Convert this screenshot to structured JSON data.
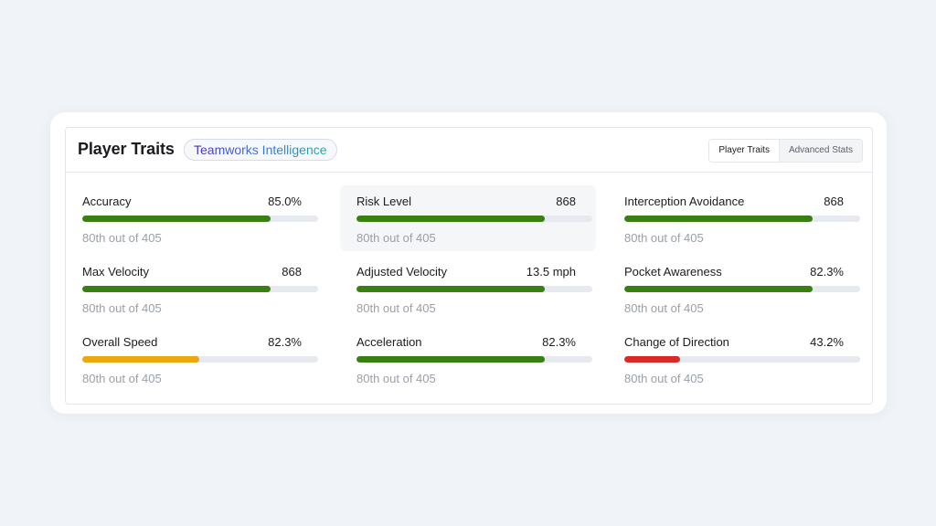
{
  "header": {
    "title": "Player Traits",
    "badge": "Teamworks Intelligence",
    "tabs": [
      {
        "label": "Player Traits",
        "active": true
      },
      {
        "label": "Advanced Stats",
        "active": false
      }
    ]
  },
  "colors": {
    "green": "#3a7f12",
    "yellow": "#e8a80e",
    "red": "#d92a2a",
    "track": "#e6e9ee"
  },
  "traits": [
    {
      "label": "Accuracy",
      "value": "85.0%",
      "rank": "80th out of 405",
      "fill": 0.8,
      "color": "green",
      "highlight": false
    },
    {
      "label": "Risk Level",
      "value": "868",
      "rank": "80th out of 405",
      "fill": 0.8,
      "color": "green",
      "highlight": true
    },
    {
      "label": "Interception Avoidance",
      "value": "868",
      "rank": "80th out of 405",
      "fill": 0.8,
      "color": "green",
      "highlight": false
    },
    {
      "label": "Max Velocity",
      "value": "868",
      "rank": "80th out of 405",
      "fill": 0.8,
      "color": "green",
      "highlight": false
    },
    {
      "label": "Adjusted Velocity",
      "value": "13.5 mph",
      "rank": "80th out of 405",
      "fill": 0.8,
      "color": "green",
      "highlight": false
    },
    {
      "label": "Pocket Awareness",
      "value": "82.3%",
      "rank": "80th out of 405",
      "fill": 0.8,
      "color": "green",
      "highlight": false
    },
    {
      "label": "Overall Speed",
      "value": "82.3%",
      "rank": "80th out of 405",
      "fill": 0.495,
      "color": "yellow",
      "highlight": false
    },
    {
      "label": "Acceleration",
      "value": "82.3%",
      "rank": "80th out of 405",
      "fill": 0.8,
      "color": "green",
      "highlight": false
    },
    {
      "label": "Change of Direction",
      "value": "43.2%",
      "rank": "80th out of 405",
      "fill": 0.235,
      "color": "red",
      "highlight": false
    }
  ]
}
